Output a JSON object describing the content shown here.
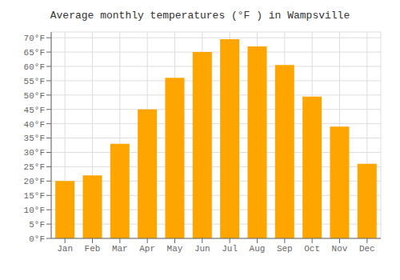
{
  "chart_data": {
    "type": "bar",
    "title": "Average monthly temperatures (°F ) in Wampsville",
    "categories": [
      "Jan",
      "Feb",
      "Mar",
      "Apr",
      "May",
      "Jun",
      "Jul",
      "Aug",
      "Sep",
      "Oct",
      "Nov",
      "Dec"
    ],
    "values": [
      20,
      22,
      33,
      45,
      56,
      65,
      69.5,
      67,
      60.5,
      49.5,
      39,
      26
    ],
    "color": "#FFA500",
    "ylim": [
      0,
      72
    ],
    "yticks": [
      {
        "value": 0,
        "label": "0°F"
      },
      {
        "value": 5,
        "label": "5°F"
      },
      {
        "value": 10,
        "label": "10°F"
      },
      {
        "value": 15,
        "label": "15°F"
      },
      {
        "value": 20,
        "label": "20°F"
      },
      {
        "value": 25,
        "label": "25°F"
      },
      {
        "value": 30,
        "label": "30°F"
      },
      {
        "value": 35,
        "label": "35°F"
      },
      {
        "value": 40,
        "label": "40°F"
      },
      {
        "value": 45,
        "label": "45°F"
      },
      {
        "value": 50,
        "label": "50°F"
      },
      {
        "value": 55,
        "label": "55°F"
      },
      {
        "value": 60,
        "label": "60°F"
      },
      {
        "value": 65,
        "label": "65°F"
      },
      {
        "value": 70,
        "label": "70°F"
      }
    ],
    "grid": true
  }
}
